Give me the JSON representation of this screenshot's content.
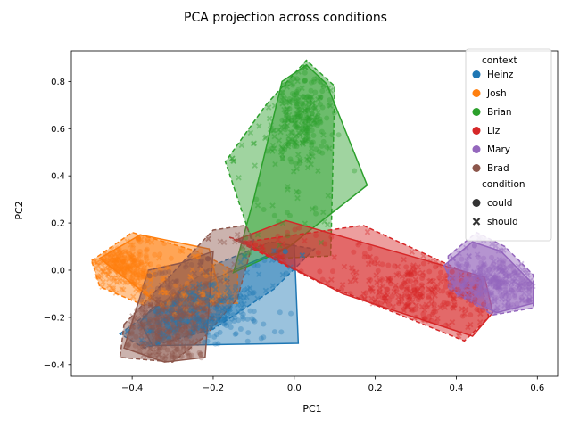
{
  "chart_data": {
    "type": "scatter",
    "title": "PCA projection across conditions",
    "xlabel": "PC1",
    "ylabel": "PC2",
    "xlim": [
      -0.55,
      0.65
    ],
    "ylim": [
      -0.45,
      0.93
    ],
    "xticks": [
      -0.4,
      -0.2,
      0.0,
      0.2,
      0.4,
      0.6
    ],
    "yticks": [
      -0.4,
      -0.2,
      0.0,
      0.2,
      0.4,
      0.6,
      0.8
    ],
    "xtick_labels": [
      "−0.4",
      "−0.2",
      "0.0",
      "0.2",
      "0.4",
      "0.6"
    ],
    "ytick_labels": [
      "−0.4",
      "−0.2",
      "0.0",
      "0.2",
      "0.4",
      "0.6",
      "0.8"
    ],
    "grid": false,
    "legend_position": "top-right",
    "legend": {
      "hue_title": "context",
      "style_title": "condition",
      "style_items": [
        {
          "label": "could",
          "marker": "circle"
        },
        {
          "label": "should",
          "marker": "x"
        }
      ]
    },
    "series": [
      {
        "name": "Heinz",
        "color": "#1f77b4",
        "could_hull": [
          [
            -0.35,
            -0.16
          ],
          [
            -0.15,
            0.0
          ],
          [
            0.0,
            0.11
          ],
          [
            0.01,
            -0.31
          ],
          [
            -0.35,
            -0.32
          ],
          [
            -0.38,
            -0.22
          ]
        ],
        "should_hull": [
          [
            -0.43,
            -0.27
          ],
          [
            -0.2,
            0.02
          ],
          [
            -0.06,
            0.12
          ],
          [
            0.05,
            0.09
          ],
          [
            -0.05,
            -0.08
          ],
          [
            -0.2,
            -0.25
          ],
          [
            -0.37,
            -0.33
          ]
        ],
        "could_center": [
          -0.22,
          -0.2
        ],
        "could_spread": [
          0.08,
          0.07
        ],
        "should_center": [
          -0.25,
          -0.18
        ],
        "should_spread": [
          0.09,
          0.07
        ]
      },
      {
        "name": "Josh",
        "color": "#ff7f0e",
        "could_hull": [
          [
            -0.48,
            0.05
          ],
          [
            -0.38,
            0.15
          ],
          [
            -0.21,
            0.09
          ],
          [
            -0.18,
            -0.13
          ],
          [
            -0.28,
            -0.21
          ],
          [
            -0.36,
            -0.11
          ]
        ],
        "should_hull": [
          [
            -0.5,
            0.04
          ],
          [
            -0.4,
            0.16
          ],
          [
            -0.24,
            0.08
          ],
          [
            -0.14,
            -0.01
          ],
          [
            -0.14,
            -0.14
          ],
          [
            -0.37,
            -0.15
          ],
          [
            -0.48,
            -0.07
          ]
        ],
        "could_center": [
          -0.43,
          0.01
        ],
        "could_spread": [
          0.04,
          0.05
        ],
        "should_center": [
          -0.44,
          0.0
        ],
        "should_spread": [
          0.05,
          0.05
        ]
      },
      {
        "name": "Brian",
        "color": "#2ca02c",
        "could_hull": [
          [
            -0.03,
            0.8
          ],
          [
            0.03,
            0.87
          ],
          [
            0.08,
            0.79
          ],
          [
            0.18,
            0.36
          ],
          [
            -0.02,
            0.09
          ],
          [
            -0.15,
            -0.01
          ],
          [
            -0.1,
            0.3
          ]
        ],
        "should_hull": [
          [
            -0.07,
            0.7
          ],
          [
            0.03,
            0.89
          ],
          [
            0.1,
            0.78
          ],
          [
            0.09,
            0.06
          ],
          [
            -0.04,
            0.05
          ],
          [
            -0.1,
            0.1
          ],
          [
            -0.17,
            0.46
          ]
        ],
        "could_center": [
          0.02,
          0.65
        ],
        "could_spread": [
          0.03,
          0.09
        ],
        "should_center": [
          0.0,
          0.6
        ],
        "should_spread": [
          0.04,
          0.11
        ]
      },
      {
        "name": "Liz",
        "color": "#d62728",
        "could_hull": [
          [
            -0.14,
            0.13
          ],
          [
            -0.02,
            0.21
          ],
          [
            0.47,
            -0.03
          ],
          [
            0.49,
            -0.18
          ],
          [
            0.44,
            -0.28
          ],
          [
            0.12,
            -0.1
          ]
        ],
        "should_hull": [
          [
            -0.16,
            0.14
          ],
          [
            -0.12,
            0.12
          ],
          [
            0.17,
            0.19
          ],
          [
            0.46,
            -0.04
          ],
          [
            0.48,
            -0.2
          ],
          [
            0.42,
            -0.3
          ],
          [
            0.06,
            -0.05
          ]
        ],
        "could_center": [
          0.3,
          -0.1
        ],
        "could_spread": [
          0.09,
          0.08
        ],
        "should_center": [
          0.28,
          -0.09
        ],
        "should_spread": [
          0.1,
          0.08
        ]
      },
      {
        "name": "Mary",
        "color": "#9467bd",
        "could_hull": [
          [
            0.37,
            0.02
          ],
          [
            0.44,
            0.12
          ],
          [
            0.51,
            0.08
          ],
          [
            0.59,
            -0.06
          ],
          [
            0.59,
            -0.14
          ],
          [
            0.5,
            -0.18
          ],
          [
            0.4,
            -0.1
          ]
        ],
        "should_hull": [
          [
            0.38,
            0.06
          ],
          [
            0.45,
            0.16
          ],
          [
            0.52,
            0.1
          ],
          [
            0.59,
            -0.02
          ],
          [
            0.59,
            -0.16
          ],
          [
            0.49,
            -0.19
          ],
          [
            0.38,
            -0.08
          ]
        ],
        "could_center": [
          0.49,
          -0.04
        ],
        "could_spread": [
          0.05,
          0.05
        ],
        "should_center": [
          0.5,
          -0.05
        ],
        "should_spread": [
          0.05,
          0.05
        ]
      },
      {
        "name": "Brad",
        "color": "#8c564b",
        "could_hull": [
          [
            -0.36,
            0.0
          ],
          [
            -0.28,
            0.03
          ],
          [
            -0.2,
            0.08
          ],
          [
            -0.22,
            -0.37
          ],
          [
            -0.32,
            -0.39
          ],
          [
            -0.42,
            -0.33
          ]
        ],
        "should_hull": [
          [
            -0.42,
            -0.23
          ],
          [
            -0.2,
            0.17
          ],
          [
            -0.12,
            0.19
          ],
          [
            -0.1,
            0.13
          ],
          [
            -0.14,
            -0.12
          ],
          [
            -0.22,
            -0.28
          ],
          [
            -0.3,
            -0.39
          ],
          [
            -0.43,
            -0.37
          ]
        ],
        "could_center": [
          -0.33,
          -0.24
        ],
        "could_spread": [
          0.06,
          0.08
        ],
        "should_center": [
          -0.32,
          -0.2
        ],
        "should_spread": [
          0.06,
          0.09
        ]
      }
    ]
  }
}
